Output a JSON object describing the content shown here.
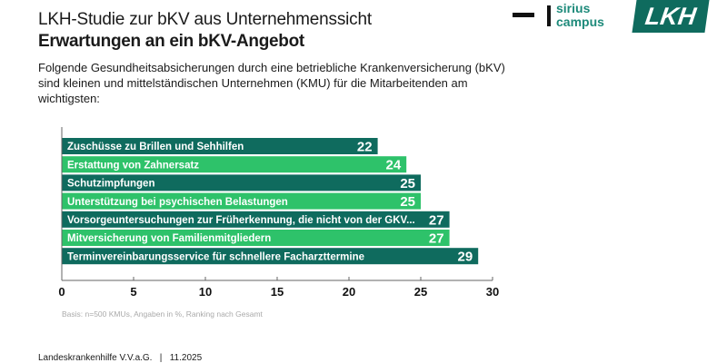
{
  "header": {
    "title": "LKH-Studie zur bKV aus Unternehmenssicht",
    "subtitle": "Erwartungen an ein bKV-Angebot",
    "intro": "Folgende Gesundheitsabsicherungen durch eine betriebliche Krankenversicherung (bKV) sind kleinen und mittelständischen Unternehmen (KMU) für die Mitarbeitenden am wichtigsten:"
  },
  "logos": {
    "sirius_line1": "sirius",
    "sirius_line2": "campus",
    "lkh": "LKH"
  },
  "colors": {
    "dark": "#0f6b5e",
    "light": "#2ec26a",
    "brand_text": "#1d8a7a"
  },
  "chart_data": {
    "type": "bar",
    "orientation": "horizontal",
    "categories": [
      "Zuschüsse zu Brillen und Sehhilfen",
      "Erstattung von Zahnersatz",
      "Schutzimpfungen",
      "Unterstützung bei psychischen Belastungen",
      "Vorsorgeuntersuchungen zur Früherkennung, die nicht von der GKV...",
      "Mitversicherung von Familienmitgliedern",
      "Terminvereinbarungsservice für schnellere Facharzttermine"
    ],
    "values": [
      22,
      24,
      25,
      25,
      27,
      27,
      29
    ],
    "xlim": [
      0,
      30
    ],
    "ticks": [
      "0",
      "5",
      "10",
      "15",
      "20",
      "25",
      "30"
    ],
    "grid": false,
    "note": "Basis: n=500 KMUs, Angaben in %, Ranking nach Gesamt"
  },
  "footer": "Landeskrankenhilfe V.V.a.G.   |   11.2025"
}
